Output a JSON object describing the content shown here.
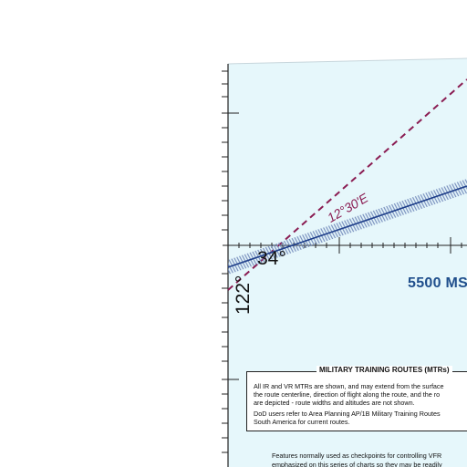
{
  "map": {
    "latitude_label": "34°",
    "longitude_label": "122°",
    "magnetic_variation_label": "12°30'E",
    "altitude_label": "5500 MS",
    "legend": {
      "title": "MILITARY TRAINING ROUTES (MTRs)",
      "paragraph_1": "All IR and VR MTRs are shown, and may extend from the surface\nthe route centerline, direction of flight along the route, and the ro\nare depicted - route widths and altitudes are not shown.",
      "paragraph_2": "DoD users refer to Area Planning AP/1B Military Training Routes\nSouth America for current routes."
    },
    "bottom_note": "Features normally used as checkpoints for controlling VFR\nemphasized on this series of charts so they may be readily"
  },
  "colors": {
    "water": "#e6f7fb",
    "route_line": "#1f3f8a",
    "route_hatch": "#6e86b8",
    "isogonic_line": "#8a1c52",
    "graticule": "#222222"
  },
  "icons": [
    "victor-airway-route",
    "isogonic-line",
    "graticule-ticks"
  ]
}
